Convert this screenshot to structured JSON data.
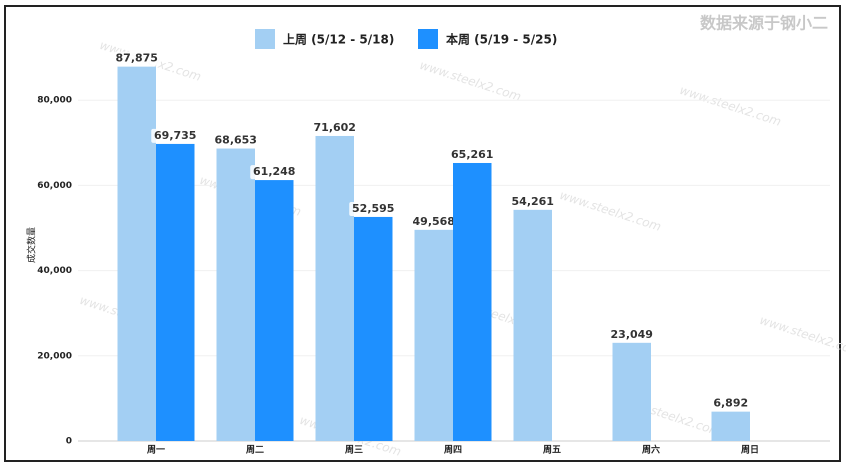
{
  "chart_data": {
    "type": "bar",
    "source_note": "数据来源于钢小二",
    "watermark": "www.steelx2.com",
    "y_label": "成交数量",
    "categories": [
      "周一",
      "周二",
      "周三",
      "周四",
      "周五",
      "周六",
      "周日"
    ],
    "series": [
      {
        "name": "上周 (5/12 - 5/18)",
        "color": "#a3cff3",
        "values": [
          87875,
          68653,
          71602,
          49568,
          54261,
          23049,
          6892
        ],
        "value_labels": [
          "87,875",
          "68,653",
          "71,602",
          "49,568",
          "54,261",
          "23,049",
          "6,892"
        ]
      },
      {
        "name": "本周 (5/19 - 5/25)",
        "color": "#1e90ff",
        "values": [
          69735,
          61248,
          52595,
          65261,
          null,
          null,
          null
        ],
        "value_labels": [
          "69,735",
          "61,248",
          "52,595",
          "65,261",
          null,
          null,
          null
        ]
      }
    ],
    "ylim": [
      0,
      100000
    ],
    "yticks": [
      0,
      {
        "value": 20000,
        "label": "20,000"
      },
      {
        "value": 40000,
        "label": "40,000"
      },
      {
        "value": 60000,
        "label": "60,000"
      },
      {
        "value": 80000,
        "label": "80,000"
      }
    ],
    "grid": true
  }
}
